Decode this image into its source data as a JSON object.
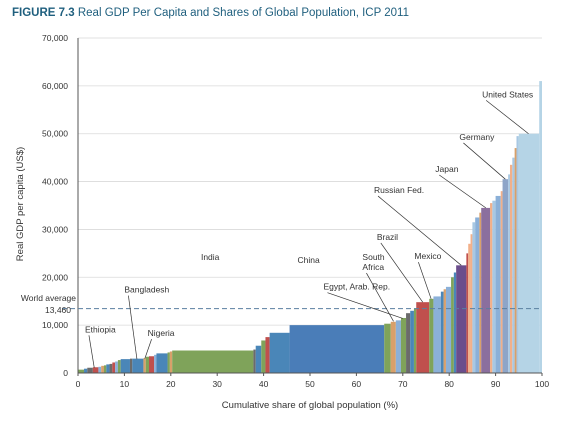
{
  "figure": {
    "label": "FIGURE 7.3",
    "title": "Real GDP Per Capita and Shares of Global Population, ICP 2011"
  },
  "colors": {
    "title": "#1f5f7e",
    "grid": "#d9d9d9",
    "axis": "#555555",
    "world_average_line": "#5a7fa0",
    "leader": "#333333"
  },
  "chart_data": {
    "type": "bar",
    "subtype": "variable-width bar (cumulative population share)",
    "xlabel": "Cumulative share of global population (%)",
    "ylabel": "Real GDP per capita (US$)",
    "xlim": [
      0,
      100
    ],
    "ylim": [
      0,
      70000
    ],
    "x_ticks": [
      0,
      10,
      20,
      30,
      40,
      50,
      60,
      70,
      80,
      90,
      100
    ],
    "y_ticks": [
      {
        "value": 0,
        "label": "0"
      },
      {
        "value": 10000,
        "label": "10,000"
      },
      {
        "value": 20000,
        "label": "20,000"
      },
      {
        "value": 30000,
        "label": "30,000"
      },
      {
        "value": 40000,
        "label": "40,000"
      },
      {
        "value": 50000,
        "label": "50,000"
      },
      {
        "value": 60000,
        "label": "60,000"
      },
      {
        "value": 70000,
        "label": "70,000"
      }
    ],
    "grid": "horizontal",
    "reference_line": {
      "label": "World average",
      "value_label": "13,460",
      "value": 13460
    },
    "segments": [
      {
        "x0": 0.0,
        "x1": 1.3,
        "y": 700,
        "color": "#7fa35a"
      },
      {
        "x0": 1.3,
        "x1": 2.0,
        "y": 900,
        "color": "#4a86b8"
      },
      {
        "x0": 2.0,
        "x1": 3.2,
        "y": 1100,
        "color": "#6b6b6b"
      },
      {
        "x0": 3.2,
        "x1": 4.4,
        "y": 1200,
        "color": "#c0504d"
      },
      {
        "x0": 4.4,
        "x1": 5.0,
        "y": 1300,
        "color": "#8bb0d8"
      },
      {
        "x0": 5.0,
        "x1": 5.6,
        "y": 1500,
        "color": "#d8a06a"
      },
      {
        "x0": 5.6,
        "x1": 6.1,
        "y": 1600,
        "color": "#7fa35a"
      },
      {
        "x0": 6.1,
        "x1": 6.8,
        "y": 1800,
        "color": "#4a86b8"
      },
      {
        "x0": 6.8,
        "x1": 7.4,
        "y": 1900,
        "color": "#6b6b6b"
      },
      {
        "x0": 7.4,
        "x1": 8.0,
        "y": 2200,
        "color": "#c0504d"
      },
      {
        "x0": 8.0,
        "x1": 8.6,
        "y": 2400,
        "color": "#8bb0d8"
      },
      {
        "x0": 8.6,
        "x1": 9.2,
        "y": 2700,
        "color": "#7fa35a"
      },
      {
        "x0": 9.2,
        "x1": 11.2,
        "y": 2900,
        "color": "#4a86b8"
      },
      {
        "x0": 11.2,
        "x1": 11.7,
        "y": 3000,
        "color": "#6b6b6b"
      },
      {
        "x0": 11.7,
        "x1": 14.1,
        "y": 3000,
        "color": "#4a86b8"
      },
      {
        "x0": 14.1,
        "x1": 14.6,
        "y": 3100,
        "color": "#d8a06a"
      },
      {
        "x0": 14.6,
        "x1": 15.3,
        "y": 3400,
        "color": "#7fa35a"
      },
      {
        "x0": 15.3,
        "x1": 16.4,
        "y": 3500,
        "color": "#c0504d"
      },
      {
        "x0": 16.4,
        "x1": 16.9,
        "y": 3800,
        "color": "#8bb0d8"
      },
      {
        "x0": 16.9,
        "x1": 19.3,
        "y": 4100,
        "color": "#4a86b8"
      },
      {
        "x0": 19.3,
        "x1": 19.8,
        "y": 4300,
        "color": "#7fa35a"
      },
      {
        "x0": 19.8,
        "x1": 20.3,
        "y": 4500,
        "color": "#d8a06a"
      },
      {
        "x0": 20.3,
        "x1": 37.8,
        "y": 4700,
        "color": "#7fa35a"
      },
      {
        "x0": 37.8,
        "x1": 38.3,
        "y": 4900,
        "color": "#6b6b6b"
      },
      {
        "x0": 38.3,
        "x1": 39.5,
        "y": 5700,
        "color": "#4a86b8"
      },
      {
        "x0": 39.5,
        "x1": 40.4,
        "y": 6800,
        "color": "#7fa35a"
      },
      {
        "x0": 40.4,
        "x1": 41.3,
        "y": 7500,
        "color": "#c0504d"
      },
      {
        "x0": 41.3,
        "x1": 45.6,
        "y": 8400,
        "color": "#4a86b8"
      },
      {
        "x0": 45.6,
        "x1": 66.0,
        "y": 10000,
        "color": "#4a7db8"
      },
      {
        "x0": 66.0,
        "x1": 67.4,
        "y": 10300,
        "color": "#7fa35a"
      },
      {
        "x0": 67.4,
        "x1": 68.5,
        "y": 10700,
        "color": "#d8a06a"
      },
      {
        "x0": 68.5,
        "x1": 69.6,
        "y": 11000,
        "color": "#8bb0d8"
      },
      {
        "x0": 69.6,
        "x1": 70.7,
        "y": 11500,
        "color": "#7fa35a"
      },
      {
        "x0": 70.7,
        "x1": 71.6,
        "y": 12500,
        "color": "#6b6b6b"
      },
      {
        "x0": 71.6,
        "x1": 72.4,
        "y": 13000,
        "color": "#4a86b8"
      },
      {
        "x0": 72.4,
        "x1": 72.9,
        "y": 13500,
        "color": "#7fa35a"
      },
      {
        "x0": 72.9,
        "x1": 75.7,
        "y": 14800,
        "color": "#c0504d"
      },
      {
        "x0": 75.7,
        "x1": 76.6,
        "y": 15500,
        "color": "#7fa35a"
      },
      {
        "x0": 76.6,
        "x1": 78.2,
        "y": 16000,
        "color": "#8bb0d8"
      },
      {
        "x0": 78.2,
        "x1": 78.8,
        "y": 17000,
        "color": "#4a86b8"
      },
      {
        "x0": 78.8,
        "x1": 79.3,
        "y": 17500,
        "color": "#d8a06a"
      },
      {
        "x0": 79.3,
        "x1": 80.4,
        "y": 18000,
        "color": "#8bb0d8"
      },
      {
        "x0": 80.4,
        "x1": 81.0,
        "y": 20000,
        "color": "#7fa35a"
      },
      {
        "x0": 81.0,
        "x1": 81.5,
        "y": 21000,
        "color": "#4a86b8"
      },
      {
        "x0": 81.5,
        "x1": 83.7,
        "y": 22500,
        "color": "#6b4d8c"
      },
      {
        "x0": 83.7,
        "x1": 84.1,
        "y": 25000,
        "color": "#c0504d"
      },
      {
        "x0": 84.1,
        "x1": 84.6,
        "y": 27000,
        "color": "#f2b08a"
      },
      {
        "x0": 84.6,
        "x1": 85.0,
        "y": 29000,
        "color": "#f2b08a"
      },
      {
        "x0": 85.0,
        "x1": 85.6,
        "y": 31500,
        "color": "#a8c8e3"
      },
      {
        "x0": 85.6,
        "x1": 86.5,
        "y": 32500,
        "color": "#8bb0d8"
      },
      {
        "x0": 86.5,
        "x1": 86.9,
        "y": 33500,
        "color": "#d8a06a"
      },
      {
        "x0": 86.9,
        "x1": 88.8,
        "y": 34500,
        "color": "#8b6f9e"
      },
      {
        "x0": 88.8,
        "x1": 89.3,
        "y": 35500,
        "color": "#f2b08a"
      },
      {
        "x0": 89.3,
        "x1": 90.0,
        "y": 36000,
        "color": "#a8c8e3"
      },
      {
        "x0": 90.0,
        "x1": 91.1,
        "y": 37000,
        "color": "#8bb0d8"
      },
      {
        "x0": 91.1,
        "x1": 91.5,
        "y": 38000,
        "color": "#f2b08a"
      },
      {
        "x0": 91.5,
        "x1": 92.7,
        "y": 40500,
        "color": "#8ea5c8"
      },
      {
        "x0": 92.7,
        "x1": 93.1,
        "y": 41500,
        "color": "#a8c8e3"
      },
      {
        "x0": 93.1,
        "x1": 93.6,
        "y": 43500,
        "color": "#f2b08a"
      },
      {
        "x0": 93.6,
        "x1": 94.1,
        "y": 45000,
        "color": "#a8c8e3"
      },
      {
        "x0": 94.1,
        "x1": 94.5,
        "y": 47000,
        "color": "#d8a06a"
      },
      {
        "x0": 94.5,
        "x1": 95.0,
        "y": 49500,
        "color": "#a8c8e3"
      },
      {
        "x0": 95.0,
        "x1": 99.4,
        "y": 50000,
        "color": "#b5d4e6"
      },
      {
        "x0": 99.4,
        "x1": 100.0,
        "y": 61000,
        "color": "#b5d4e6"
      }
    ],
    "annotations": [
      {
        "text": "Ethiopia",
        "tx": 1.5,
        "ty": 8500,
        "ax": 3.5,
        "ay": 1100
      },
      {
        "text": "Bangladesh",
        "tx": 10.0,
        "ty": 16800,
        "ax": 12.7,
        "ay": 2900
      },
      {
        "text": "Nigeria",
        "tx": 15.0,
        "ty": 7700,
        "ax": 14.4,
        "ay": 3000
      },
      {
        "text": "India",
        "tx": 26.5,
        "ty": 23600,
        "ax": null,
        "ay": null
      },
      {
        "text": "China",
        "tx": 47.3,
        "ty": 23000,
        "ax": null,
        "ay": null
      },
      {
        "text": "South",
        "tx": 61.3,
        "ty": 23600,
        "ax": null,
        "ay": null
      },
      {
        "text": "Africa",
        "tx": 61.3,
        "ty": 21500,
        "ax": 68.0,
        "ay": 10800
      },
      {
        "text": "Egypt, Arab. Rep.",
        "tx": 52.9,
        "ty": 17400,
        "ax": 70.0,
        "ay": 11400
      },
      {
        "text": "Brazil",
        "tx": 64.4,
        "ty": 27800,
        "ax": 74.3,
        "ay": 14800
      },
      {
        "text": "Mexico",
        "tx": 72.5,
        "ty": 23800,
        "ax": 76.1,
        "ay": 15500
      },
      {
        "text": "Russian Fed.",
        "tx": 63.8,
        "ty": 37600,
        "ax": 82.6,
        "ay": 22500
      },
      {
        "text": "Japan",
        "tx": 77.0,
        "ty": 42000,
        "ax": 87.9,
        "ay": 34500
      },
      {
        "text": "Germany",
        "tx": 82.2,
        "ty": 48700,
        "ax": 92.1,
        "ay": 40500
      },
      {
        "text": "United States",
        "tx": 87.1,
        "ty": 57600,
        "ax": 97.1,
        "ay": 50000
      }
    ]
  }
}
